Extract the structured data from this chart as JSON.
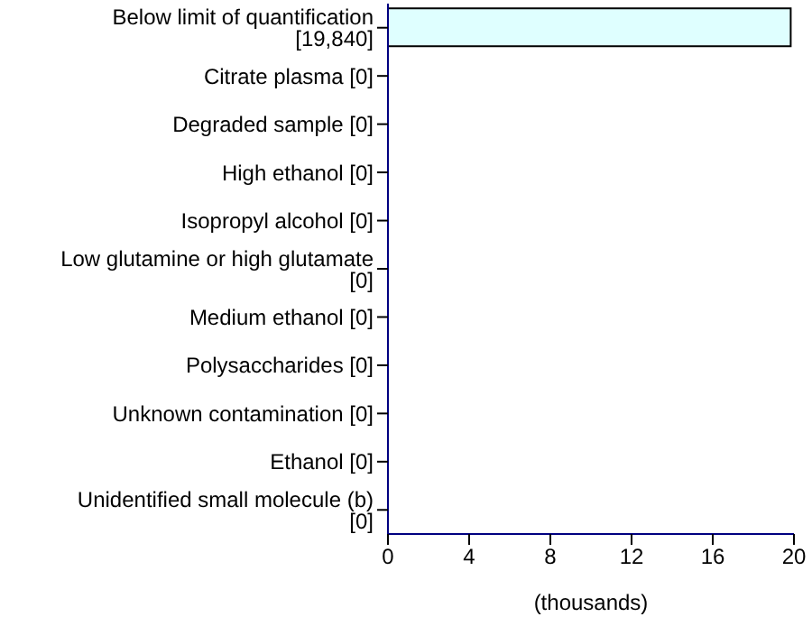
{
  "chart_data": {
    "type": "bar",
    "orientation": "horizontal",
    "xlabel": "(thousands)",
    "categories": [
      "Below limit of quantification [19,840]",
      "Citrate plasma [0]",
      "Degraded sample [0]",
      "High ethanol [0]",
      "Isopropyl alcohol [0]",
      "Low glutamine or high glutamate [0]",
      "Medium ethanol [0]",
      "Polysaccharides [0]",
      "Unknown contamination [0]",
      "Ethanol [0]",
      "Unidentified small molecule (b) [0]"
    ],
    "values": [
      19.84,
      0,
      0,
      0,
      0,
      0,
      0,
      0,
      0,
      0,
      0
    ],
    "color": "#dfffff",
    "xlim": [
      0,
      20
    ],
    "xticks": [
      0,
      4,
      8,
      12,
      16,
      20
    ],
    "grid": false,
    "legend": false
  }
}
